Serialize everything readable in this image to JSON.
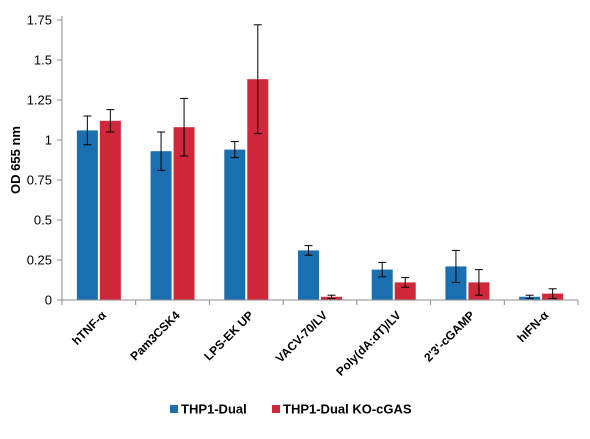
{
  "chart_data": {
    "type": "bar",
    "ylabel": "OD 655 nm",
    "xlabel": "",
    "ylim": [
      0,
      1.75
    ],
    "yticks": [
      0,
      0.25,
      0.5,
      0.75,
      1,
      1.25,
      1.5,
      1.75
    ],
    "ytick_labels": [
      "0",
      "0.25",
      "0.5",
      "0.75",
      "1",
      "1.25",
      "1.5",
      "1.75"
    ],
    "grid": false,
    "legend_position": "bottom",
    "categories": [
      "hTNF-α",
      "Pam3CSK4",
      "LPS-EK UP",
      "VACV-70/LV",
      "Poly(dA:dT)/LV",
      "2'3'-cGAMP",
      "hIFN-α"
    ],
    "series": [
      {
        "name": "THP1-Dual",
        "color": "#1a6fb0",
        "values": [
          1.06,
          0.93,
          0.94,
          0.31,
          0.19,
          0.21,
          0.02
        ],
        "errors": [
          0.09,
          0.12,
          0.05,
          0.03,
          0.045,
          0.1,
          0.01
        ]
      },
      {
        "name": "THP1-Dual KO-cGAS",
        "color": "#d0283a",
        "values": [
          1.12,
          1.08,
          1.38,
          0.02,
          0.11,
          0.11,
          0.04
        ],
        "errors": [
          0.07,
          0.18,
          0.34,
          0.01,
          0.03,
          0.08,
          0.03
        ]
      }
    ]
  }
}
